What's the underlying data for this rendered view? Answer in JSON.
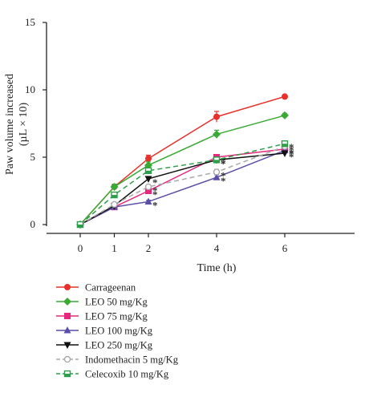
{
  "chart_data": {
    "type": "line",
    "xlabel": "Time (h)",
    "ylabel": "Paw volume increased",
    "ylabel_unit": "(µL × 10)",
    "x": [
      0,
      1,
      2,
      4,
      6
    ],
    "xticks": [
      "0",
      "1",
      "2",
      "4",
      "6"
    ],
    "yticks": [
      "0",
      "5",
      "10",
      "15"
    ],
    "xlim": [
      0,
      8
    ],
    "ylim": [
      0,
      15
    ],
    "grid": false,
    "legend_position": "bottom-left",
    "significance_marker": "*",
    "series": [
      {
        "name": "Carrageenan",
        "color": "#e8312a",
        "marker": "circle",
        "dash": "solid",
        "values": [
          0,
          2.8,
          4.9,
          8.0,
          9.5
        ],
        "errors": [
          0,
          0.15,
          0.25,
          0.4,
          0.1
        ],
        "significant": [
          false,
          false,
          false,
          false,
          false
        ]
      },
      {
        "name": "LEO 50 mg/Kg",
        "color": "#3aaa35",
        "marker": "diamond",
        "dash": "solid",
        "values": [
          0,
          2.8,
          4.4,
          6.7,
          8.1
        ],
        "errors": [
          0,
          0.2,
          0.25,
          0.3,
          0.15
        ],
        "significant": [
          false,
          false,
          false,
          false,
          false
        ]
      },
      {
        "name": "LEO 75 mg/Kg",
        "color": "#e6287e",
        "marker": "square",
        "dash": "solid",
        "values": [
          0,
          1.3,
          2.5,
          5.0,
          5.6
        ],
        "errors": [
          0,
          0.1,
          0.15,
          0.2,
          0.15
        ],
        "significant": [
          false,
          false,
          true,
          true,
          true
        ]
      },
      {
        "name": "LEO 100 mg/Kg",
        "color": "#5a4fa8",
        "marker": "triangle-up",
        "dash": "solid",
        "values": [
          0,
          1.3,
          1.7,
          3.5,
          5.5
        ],
        "errors": [
          0,
          0.1,
          0.1,
          0.2,
          0.15
        ],
        "significant": [
          false,
          false,
          true,
          true,
          true
        ]
      },
      {
        "name": "LEO 250 mg/Kg",
        "color": "#111111",
        "marker": "triangle-down",
        "dash": "solid",
        "values": [
          0,
          1.4,
          3.4,
          4.8,
          5.3
        ],
        "errors": [
          0,
          0.1,
          0.15,
          0.2,
          0.15
        ],
        "significant": [
          false,
          false,
          true,
          true,
          true
        ]
      },
      {
        "name": "Indomethacin 5 mg/Kg",
        "color": "#aaaaaa",
        "marker": "circle-open",
        "dash": "dashed",
        "values": [
          0,
          1.5,
          2.8,
          3.9,
          5.8
        ],
        "errors": [
          0,
          0.1,
          0.15,
          0.2,
          0.15
        ],
        "significant": [
          false,
          false,
          true,
          true,
          true
        ]
      },
      {
        "name": "Celecoxib 10 mg/Kg",
        "color": "#2e9e4a",
        "marker": "square-half",
        "dash": "dashed",
        "values": [
          0,
          2.2,
          4.0,
          4.8,
          6.0
        ],
        "errors": [
          0,
          0.15,
          0.2,
          0.2,
          0.15
        ],
        "significant": [
          false,
          false,
          false,
          true,
          true
        ]
      }
    ]
  }
}
